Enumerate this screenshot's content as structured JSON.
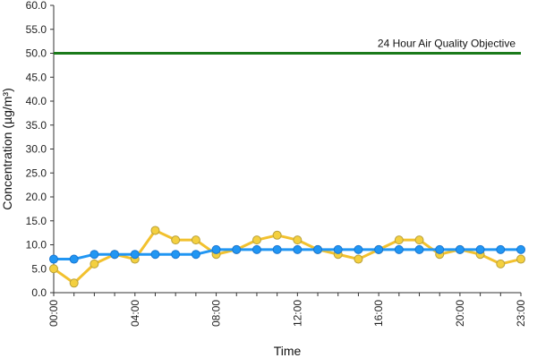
{
  "chart_data": {
    "type": "line",
    "title": "",
    "xlabel": "Time",
    "ylabel": "Concentration (µg/m³)",
    "ylim": [
      0,
      60
    ],
    "yticks": [
      "0.0",
      "5.0",
      "10.0",
      "15.0",
      "20.0",
      "25.0",
      "30.0",
      "35.0",
      "40.0",
      "45.0",
      "50.0",
      "55.0",
      "60.0"
    ],
    "xlim": [
      0,
      23
    ],
    "xticks": [
      {
        "x": 0,
        "label": "00:00"
      },
      {
        "x": 4,
        "label": "04:00"
      },
      {
        "x": 8,
        "label": "08:00"
      },
      {
        "x": 12,
        "label": "12:00"
      },
      {
        "x": 16,
        "label": "16:00"
      },
      {
        "x": 20,
        "label": "20:00"
      },
      {
        "x": 23,
        "label": "23:00"
      }
    ],
    "x": [
      0,
      1,
      2,
      3,
      4,
      5,
      6,
      7,
      8,
      9,
      10,
      11,
      12,
      13,
      14,
      15,
      16,
      17,
      18,
      19,
      20,
      21,
      22,
      23
    ],
    "grid": false,
    "series": [
      {
        "color": "#F2C12E",
        "marker_fill": "#F4D03F",
        "marker_edge": "#B8A03A",
        "values": [
          5,
          2,
          6,
          8,
          7,
          13,
          11,
          11,
          8,
          9,
          11,
          12,
          11,
          9,
          8,
          7,
          9,
          11,
          11,
          8,
          9,
          8,
          6,
          7
        ]
      },
      {
        "color": "#2196F3",
        "marker_fill": "#2196F3",
        "marker_edge": "#1976D2",
        "values": [
          7,
          7,
          8,
          8,
          8,
          8,
          8,
          8,
          9,
          9,
          9,
          9,
          9,
          9,
          9,
          9,
          9,
          9,
          9,
          9,
          9,
          9,
          9,
          9
        ]
      }
    ],
    "reference_line": {
      "value": 50,
      "label": "24 Hour Air Quality Objective",
      "color": "#1B7A1B"
    }
  }
}
